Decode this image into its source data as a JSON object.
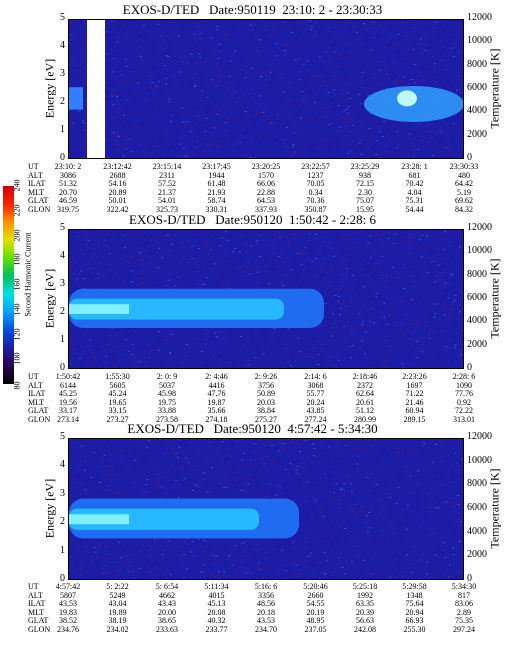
{
  "panels": [
    {
      "title": "EXOS-D/TED   Date:950119  23:10: 2 - 23:30:33",
      "ylabel": "Energy [eV]",
      "y2label": "Temperature [K]",
      "yticks": [
        "0",
        "1",
        "2",
        "3",
        "4",
        "5"
      ],
      "y2ticks": [
        "0",
        "2000",
        "4000",
        "6000",
        "8000",
        "10000",
        "12000"
      ],
      "rows": [
        {
          "label": "UT",
          "values": [
            "23:10: 2",
            "23:12:42",
            "23:15:14",
            "23:17:45",
            "23:20:25",
            "23:22:57",
            "23:25:29",
            "23:28: 1",
            "23:30:33"
          ]
        },
        {
          "label": "ALT",
          "values": [
            "3086",
            "2688",
            "2311",
            "1944",
            "1570",
            "1237",
            "938",
            "681",
            "480"
          ]
        },
        {
          "label": "ILAT",
          "values": [
            "51.32",
            "54.16",
            "57.52",
            "61.48",
            "66.06",
            "70.05",
            "72.15",
            "70.42",
            "64.42"
          ]
        },
        {
          "label": "MLT",
          "values": [
            "20.70",
            "20.89",
            "21.37",
            "21.93",
            "22.88",
            "0.34",
            "2.30",
            "4.04",
            "5.19"
          ]
        },
        {
          "label": "GLAT",
          "values": [
            "46.59",
            "50.01",
            "54.01",
            "58.74",
            "64.53",
            "70.36",
            "75.07",
            "75.31",
            "69.62"
          ]
        },
        {
          "label": "GLON",
          "values": [
            "319.75",
            "322.42",
            "325.73",
            "330.31",
            "337.93",
            "350.87",
            "15.95",
            "54.44",
            "84.32"
          ]
        }
      ]
    },
    {
      "title": "EXOS-D/TED   Date:950120  1:50:42 - 2:28: 6",
      "ylabel": "Energy [eV]",
      "y2label": "Temperature [K]",
      "yticks": [
        "0",
        "1",
        "2",
        "3",
        "4",
        "5"
      ],
      "y2ticks": [
        "0",
        "2000",
        "4000",
        "6000",
        "8000",
        "10000",
        "12000"
      ],
      "rows": [
        {
          "label": "UT",
          "values": [
            "1:50:42",
            "1:55:30",
            "2: 0: 9",
            "2: 4:46",
            "2: 9:26",
            "2:14: 6",
            "2:18:46",
            "2:23:26",
            "2:28: 6"
          ]
        },
        {
          "label": "ALT",
          "values": [
            "6144",
            "5605",
            "5037",
            "4416",
            "3756",
            "3068",
            "2372",
            "1697",
            "1090"
          ]
        },
        {
          "label": "ILAT",
          "values": [
            "45.25",
            "45.24",
            "45.98",
            "47.76",
            "50.89",
            "55.77",
            "62.64",
            "71.22",
            "77.76"
          ]
        },
        {
          "label": "MLT",
          "values": [
            "19.56",
            "19.65",
            "19.75",
            "19.87",
            "20.03",
            "20.24",
            "20.61",
            "21.46",
            "0.92"
          ]
        },
        {
          "label": "GLAT",
          "values": [
            "33.17",
            "33.15",
            "33.88",
            "35.66",
            "38.84",
            "43.85",
            "51.12",
            "60.94",
            "72.22"
          ]
        },
        {
          "label": "GLON",
          "values": [
            "273.14",
            "273.27",
            "273.58",
            "274.18",
            "275.27",
            "277.24",
            "280.99",
            "289.15",
            "313.01"
          ]
        }
      ]
    },
    {
      "title": "EXOS-D/TED   Date:950120  4:57:42 - 5:34:30",
      "ylabel": "Energy [eV]",
      "y2label": "Temperature [K]",
      "yticks": [
        "0",
        "1",
        "2",
        "3",
        "4",
        "5"
      ],
      "y2ticks": [
        "0",
        "2000",
        "4000",
        "6000",
        "8000",
        "10000",
        "12000"
      ],
      "rows": [
        {
          "label": "UT",
          "values": [
            "4:57:42",
            "5: 2:22",
            "5: 6:54",
            "5:11:34",
            "5:16: 6",
            "5:20:46",
            "5:25:18",
            "5:29:58",
            "5:34:30"
          ]
        },
        {
          "label": "ALT",
          "values": [
            "5807",
            "5249",
            "4662",
            "4015",
            "3356",
            "2660",
            "1992",
            "1348",
            "817"
          ]
        },
        {
          "label": "ILAT",
          "values": [
            "43.53",
            "43.04",
            "43.43",
            "45.13",
            "48.56",
            "54.55",
            "63.35",
            "75.64",
            "83.06"
          ]
        },
        {
          "label": "MLT",
          "values": [
            "19.83",
            "19.89",
            "20.00",
            "20.08",
            "20.18",
            "20.19",
            "20.39",
            "20.94",
            "2.89"
          ]
        },
        {
          "label": "GLAT",
          "values": [
            "38.52",
            "38.19",
            "38.65",
            "40.32",
            "43.53",
            "48.95",
            "56.63",
            "66.93",
            "75.35"
          ]
        },
        {
          "label": "GLON",
          "values": [
            "234.76",
            "234.02",
            "233.63",
            "233.77",
            "234.70",
            "237.05",
            "242.08",
            "255.30",
            "297.24"
          ]
        }
      ]
    }
  ],
  "colorbar": {
    "label": "Second Harmonic Current",
    "ticks": [
      "80",
      "100",
      "120",
      "140",
      "160",
      "180",
      "200",
      "220",
      "240"
    ],
    "colors": [
      "#000000",
      "#2a0050",
      "#1c1ca6",
      "#0050e0",
      "#00a0ff",
      "#00e0e0",
      "#00c060",
      "#60e000",
      "#e0e000",
      "#ff9000",
      "#ff2000",
      "#d00000"
    ]
  },
  "chart_data": [
    {
      "type": "heatmap",
      "title": "EXOS-D/TED   Date:950119  23:10: 2 - 23:30:33",
      "xlabel": "UT",
      "ylabel": "Energy [eV]",
      "y2label": "Temperature [K]",
      "ylim": [
        0,
        5
      ],
      "y2lim": [
        0,
        12000
      ],
      "x": [
        "23:10: 2",
        "23:12:42",
        "23:15:14",
        "23:17:45",
        "23:20:25",
        "23:22:57",
        "23:25:29",
        "23:28: 1",
        "23:30:33"
      ]
    },
    {
      "type": "heatmap",
      "title": "EXOS-D/TED   Date:950120  1:50:42 - 2:28: 6",
      "xlabel": "UT",
      "ylabel": "Energy [eV]",
      "y2label": "Temperature [K]",
      "ylim": [
        0,
        5
      ],
      "y2lim": [
        0,
        12000
      ],
      "x": [
        "1:50:42",
        "1:55:30",
        "2: 0: 9",
        "2: 4:46",
        "2: 9:26",
        "2:14: 6",
        "2:18:46",
        "2:23:26",
        "2:28: 6"
      ]
    },
    {
      "type": "heatmap",
      "title": "EXOS-D/TED   Date:950120  4:57:42 - 5:34:30",
      "xlabel": "UT",
      "ylabel": "Energy [eV]",
      "y2label": "Temperature [K]",
      "ylim": [
        0,
        5
      ],
      "y2lim": [
        0,
        12000
      ],
      "x": [
        "4:57:42",
        "5: 2:22",
        "5: 6:54",
        "5:11:34",
        "5:16: 6",
        "5:20:46",
        "5:25:18",
        "5:29:58",
        "5:34:30"
      ]
    }
  ]
}
